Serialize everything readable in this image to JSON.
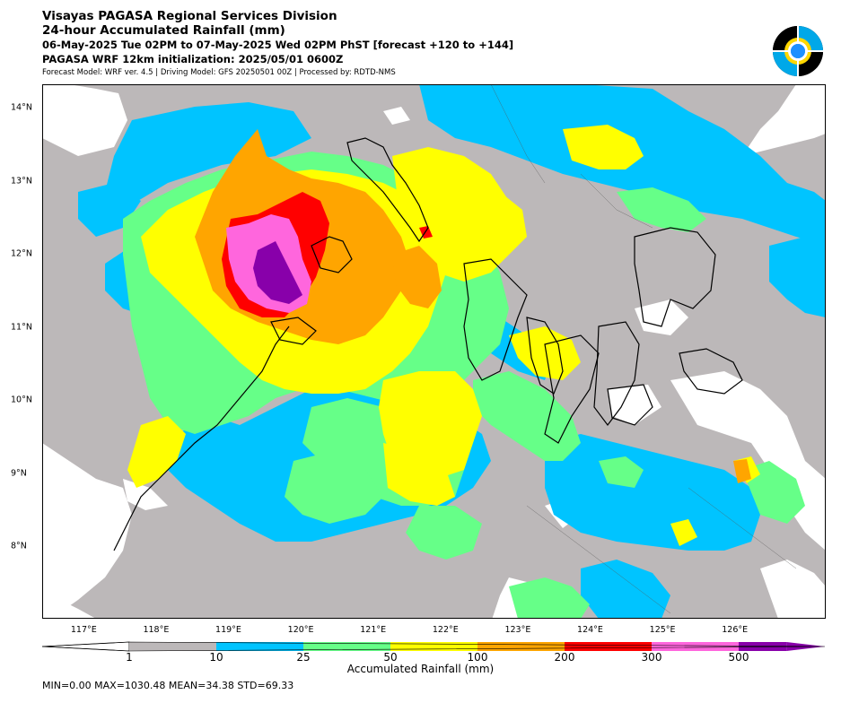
{
  "header": {
    "title": "Visayas PAGASA Regional Services Division",
    "subtitle": "24-hour Accumulated Rainfall (mm)",
    "period": "06-May-2025 Tue 02PM to 07-May-2025 Wed 02PM PhST [forecast +120 to +144]",
    "init": "PAGASA WRF 12km initialization: 2025/05/01 0600Z",
    "model_info": "Forecast Model: WRF ver. 4.5 | Driving Model: GFS 20250501 00Z | Processed by: RDTD-NMS"
  },
  "map": {
    "lon_range": [
      116.5,
      127.0
    ],
    "lat_range": [
      7.0,
      14.3
    ],
    "lon_ticks": [
      "117°E",
      "118°E",
      "119°E",
      "120°E",
      "121°E",
      "122°E",
      "123°E",
      "124°E",
      "125°E",
      "126°E"
    ],
    "lat_ticks": [
      "14°N",
      "13°N",
      "12°N",
      "11°N",
      "10°N",
      "9°N",
      "8°N"
    ]
  },
  "colorbar": {
    "title": "Accumulated Rainfall (mm)",
    "boundaries": [
      "1",
      "10",
      "25",
      "50",
      "100",
      "200",
      "300",
      "500"
    ],
    "colors": [
      "#bcb8b9",
      "#00c4ff",
      "#66ff88",
      "#ffff00",
      "#ffa500",
      "#ff0000",
      "#ff66dd",
      "#8800aa"
    ],
    "under_color": "#ffffff"
  },
  "stats": {
    "text": "MIN=0.00   MAX=1030.48   MEAN=34.38   STD=69.33"
  }
}
